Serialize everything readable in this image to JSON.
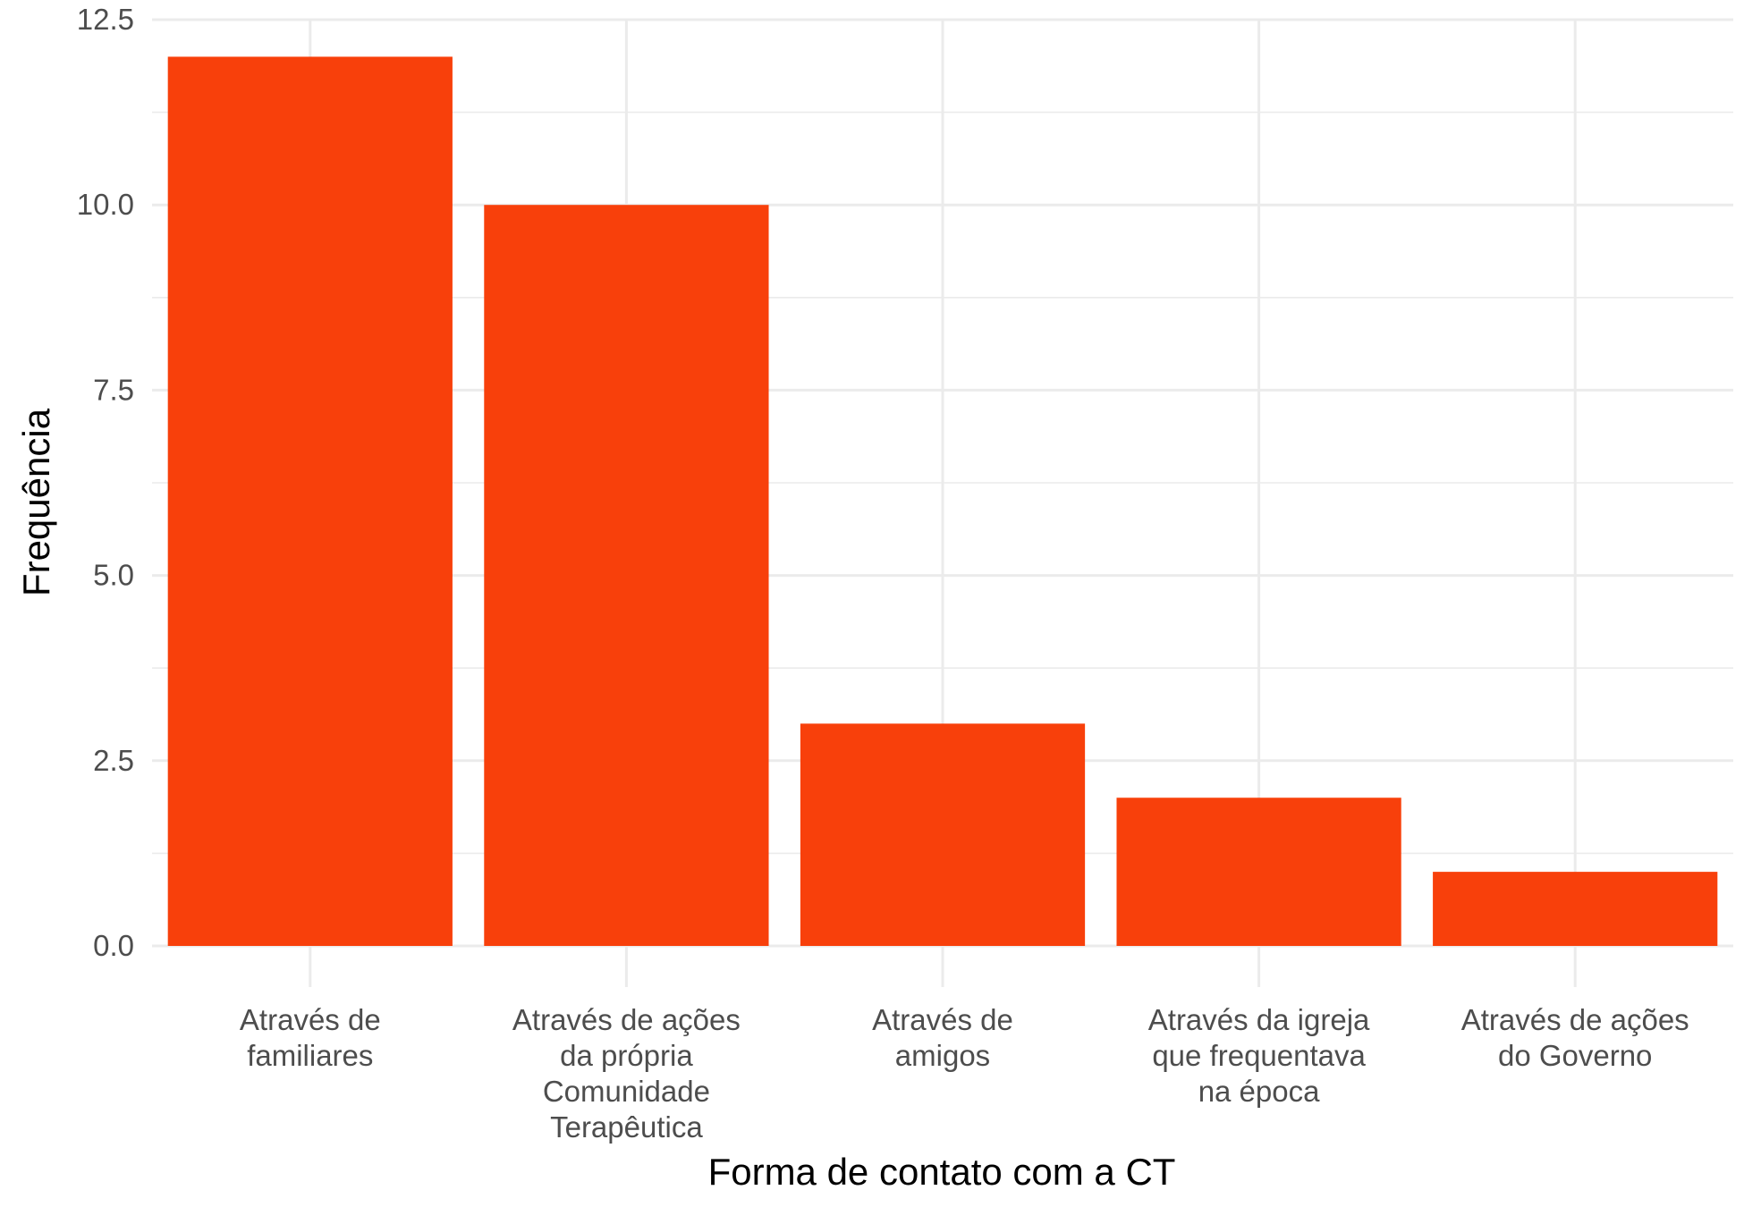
{
  "chart_data": {
    "type": "bar",
    "categories": [
      [
        "Através de",
        "familiares"
      ],
      [
        "Através de ações",
        "da própria",
        "Comunidade",
        "Terapêutica"
      ],
      [
        "Através de",
        "amigos"
      ],
      [
        "Através da igreja",
        "que frequentava",
        "na época"
      ],
      [
        "Através de ações",
        "do Governo"
      ]
    ],
    "values": [
      12,
      10,
      3,
      2,
      1
    ],
    "xlabel": "Forma de contato com a CT",
    "ylabel": "Frequência",
    "ylim": [
      0,
      12.5
    ],
    "yticks": [
      0,
      2.5,
      5,
      7.5,
      10,
      12.5
    ],
    "ytick_labels": [
      "0.0",
      "2.5",
      "5.0",
      "7.5",
      "10.0",
      "12.5"
    ],
    "grid": true,
    "bar_color": "#F8400B",
    "grid_color": "#EBEBEB"
  }
}
